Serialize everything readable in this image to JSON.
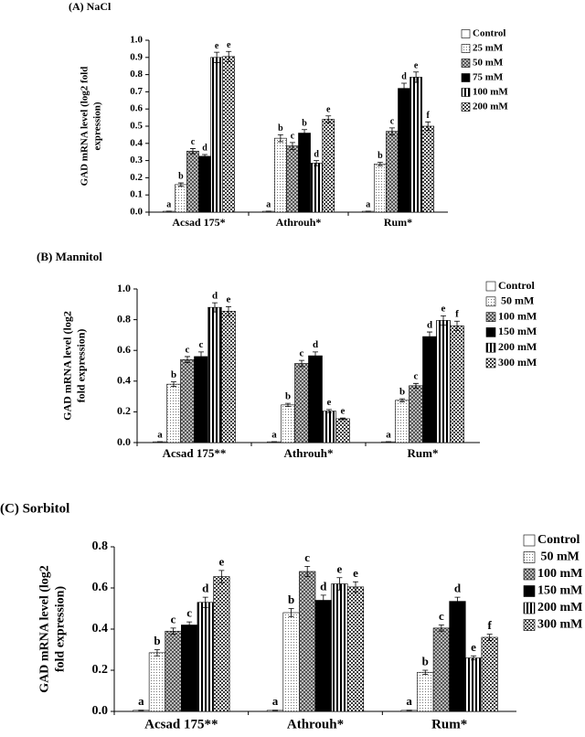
{
  "chart_data": [
    {
      "type": "bar",
      "title": "(A) NaCl",
      "ylabel": [
        "GAD mRNA level (log2 fold",
        "expression)"
      ],
      "categories": [
        "Acsad 175*",
        "Athrouh*",
        "Rum*"
      ],
      "ylim": [
        0,
        1.0
      ],
      "yticks": [
        {
          "value": 0,
          "label": "0.0"
        },
        0.1,
        0.2,
        0.3,
        0.4,
        0.5,
        0.6,
        0.7,
        0.8,
        0.9,
        {
          "value": 1.0,
          "label": "1.0"
        }
      ],
      "series": [
        {
          "name": "Control",
          "fill": "white",
          "values": [
            0.005,
            0.005,
            0.005
          ],
          "errors": [
            0.001,
            0.001,
            0.001
          ],
          "letters": [
            "a",
            "a",
            "a"
          ]
        },
        {
          "name": "25 mM",
          "fill": "light-dots",
          "values": [
            0.16,
            0.43,
            0.28
          ],
          "errors": [
            0.01,
            0.02,
            0.01
          ],
          "letters": [
            "b",
            "b",
            "b"
          ]
        },
        {
          "name": "50 mM",
          "fill": "checker",
          "values": [
            0.355,
            0.385,
            0.47
          ],
          "errors": [
            0.015,
            0.02,
            0.02
          ],
          "letters": [
            "c",
            "c",
            "c"
          ]
        },
        {
          "name": "75 mM",
          "fill": "black",
          "values": [
            0.325,
            0.46,
            0.72
          ],
          "errors": [
            0.01,
            0.02,
            0.03
          ],
          "letters": [
            "d",
            "b",
            "d"
          ]
        },
        {
          "name": "100 mM",
          "fill": "stripes",
          "values": [
            0.9,
            0.285,
            0.785
          ],
          "errors": [
            0.03,
            0.015,
            0.03
          ],
          "letters": [
            "e",
            "d",
            "e"
          ]
        },
        {
          "name": "200 mM",
          "fill": "dots",
          "values": [
            0.905,
            0.54,
            0.5
          ],
          "errors": [
            0.03,
            0.02,
            0.025
          ],
          "letters": [
            "e",
            "e",
            "f"
          ]
        }
      ]
    },
    {
      "type": "bar",
      "title": "(B) Mannitol",
      "ylabel": [
        "GAD mRNA level (log2",
        "fold expression)"
      ],
      "categories": [
        "Acsad 175**",
        "Athrouh*",
        "Rum*"
      ],
      "ylim": [
        0,
        1.0
      ],
      "yticks": [
        {
          "value": 0,
          "label": "0.0"
        },
        0.2,
        0.4,
        0.6,
        0.8,
        {
          "value": 1.0,
          "label": "1.0"
        }
      ],
      "series": [
        {
          "name": "Control",
          "fill": "white",
          "values": [
            0.005,
            0.005,
            0.005
          ],
          "errors": [
            0.001,
            0.001,
            0.001
          ],
          "letters": [
            "a",
            "a",
            "a"
          ]
        },
        {
          "name": " 50 mM",
          "fill": "light-dots",
          "values": [
            0.38,
            0.245,
            0.275
          ],
          "errors": [
            0.015,
            0.01,
            0.01
          ],
          "letters": [
            "b",
            "b",
            "b"
          ]
        },
        {
          "name": "100 mM",
          "fill": "checker",
          "values": [
            0.54,
            0.515,
            0.37
          ],
          "errors": [
            0.02,
            0.02,
            0.015
          ],
          "letters": [
            "c",
            "c",
            "c"
          ]
        },
        {
          "name": "150 mM",
          "fill": "black",
          "values": [
            0.56,
            0.565,
            0.69
          ],
          "errors": [
            0.03,
            0.025,
            0.03
          ],
          "letters": [
            "c",
            "d",
            "d"
          ]
        },
        {
          "name": "200 mM",
          "fill": "stripes",
          "values": [
            0.88,
            0.205,
            0.795
          ],
          "errors": [
            0.03,
            0.01,
            0.03
          ],
          "letters": [
            "d",
            "e",
            "e"
          ]
        },
        {
          "name": "300 mM",
          "fill": "dots",
          "values": [
            0.855,
            0.155,
            0.76
          ],
          "errors": [
            0.03,
            0.005,
            0.03
          ],
          "letters": [
            "e",
            "e",
            "f"
          ]
        }
      ]
    },
    {
      "type": "bar",
      "title": "(C) Sorbitol",
      "ylabel": [
        "GAD mRNA level (log2",
        "fold expression)"
      ],
      "categories": [
        "Acsad 175**",
        "Athrouh*",
        "Rum*"
      ],
      "ylim": [
        0,
        0.8
      ],
      "yticks": [
        {
          "value": 0,
          "label": "0.0"
        },
        0.2,
        0.4,
        0.6,
        0.8
      ],
      "series": [
        {
          "name": "Control",
          "fill": "white",
          "values": [
            0.005,
            0.005,
            0.005
          ],
          "errors": [
            0.001,
            0.001,
            0.001
          ],
          "letters": [
            "a",
            "a",
            "a"
          ]
        },
        {
          "name": " 50 mM",
          "fill": "light-dots",
          "values": [
            0.285,
            0.48,
            0.19
          ],
          "errors": [
            0.015,
            0.02,
            0.01
          ],
          "letters": [
            "b",
            "b",
            "b"
          ]
        },
        {
          "name": "100 mM",
          "fill": "checker",
          "values": [
            0.39,
            0.68,
            0.405
          ],
          "errors": [
            0.015,
            0.025,
            0.015
          ],
          "letters": [
            "c",
            "c",
            "c"
          ]
        },
        {
          "name": "150 mM",
          "fill": "black",
          "values": [
            0.42,
            0.54,
            0.535
          ],
          "errors": [
            0.015,
            0.025,
            0.02
          ],
          "letters": [
            "c",
            "d",
            "d"
          ]
        },
        {
          "name": "200 mM",
          "fill": "stripes",
          "values": [
            0.53,
            0.62,
            0.26
          ],
          "errors": [
            0.025,
            0.03,
            0.01
          ],
          "letters": [
            "d",
            "e",
            "e"
          ]
        },
        {
          "name": "300 mM",
          "fill": "dots",
          "values": [
            0.655,
            0.605,
            0.36
          ],
          "errors": [
            0.03,
            0.025,
            0.015
          ],
          "letters": [
            "e",
            "e",
            "f"
          ]
        }
      ]
    }
  ]
}
